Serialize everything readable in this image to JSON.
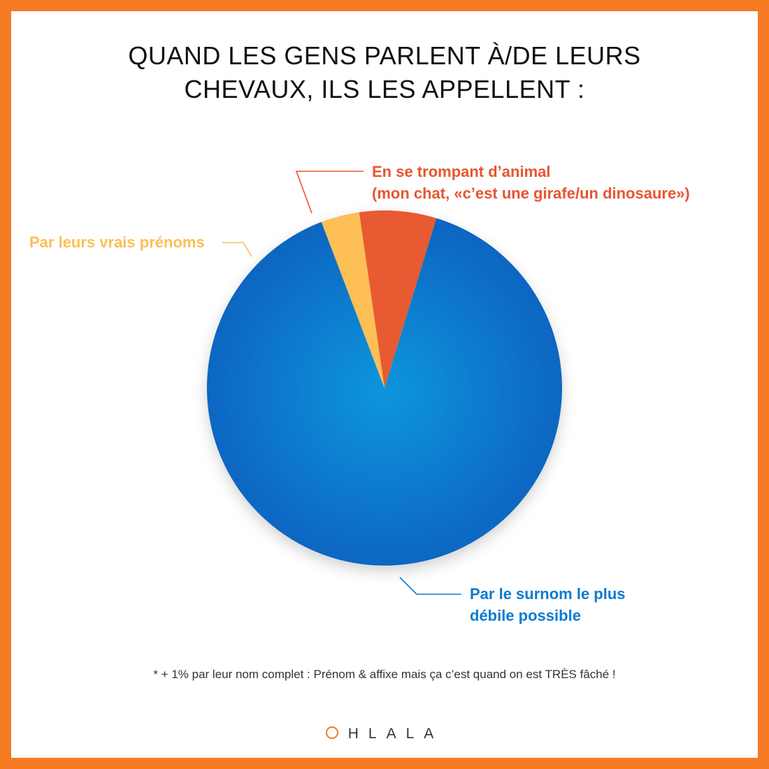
{
  "title": {
    "line1": "QUAND LES GENS PARLENT À/DE LEURS",
    "line2": "CHEVAUX, ILS LES APPELLENT :"
  },
  "chart_data": {
    "type": "pie",
    "title": "QUAND LES GENS PARLENT À/DE LEURS CHEVAUX, ILS LES APPELLENT :",
    "start_angle_deg": 17,
    "slices": [
      {
        "label": "Par le surnom le plus débile possible",
        "label_lines": [
          "Par le surnom le plus",
          "débile possible"
        ],
        "value": 89.5,
        "color": "#0a72c8"
      },
      {
        "label": "Par leurs vrais prénoms",
        "label_lines": [
          "Par leurs vrais prénoms"
        ],
        "value": 3.5,
        "color": "#fdbf56"
      },
      {
        "label": "En se trompant d’animal (mon chat, «c’est une girafe/un dinosaure»)",
        "label_lines": [
          "En se trompant d’animal",
          "(mon chat, «c’est une girafe/un dinosaure»)"
        ],
        "value": 7,
        "color": "#e85a33"
      }
    ],
    "legend": "none",
    "grid": false
  },
  "footnote": "* + 1% par leur nom complet : Prénom & affixe mais ça c’est quand on est TRÈS fâché !",
  "logo": {
    "text": "HLALA",
    "ring_color": "#f57a22"
  },
  "colors": {
    "border": "#f57a22",
    "leader_blue": "#0a7bd1",
    "leader_yellow": "#fbbf55",
    "leader_red": "#e8552f"
  }
}
